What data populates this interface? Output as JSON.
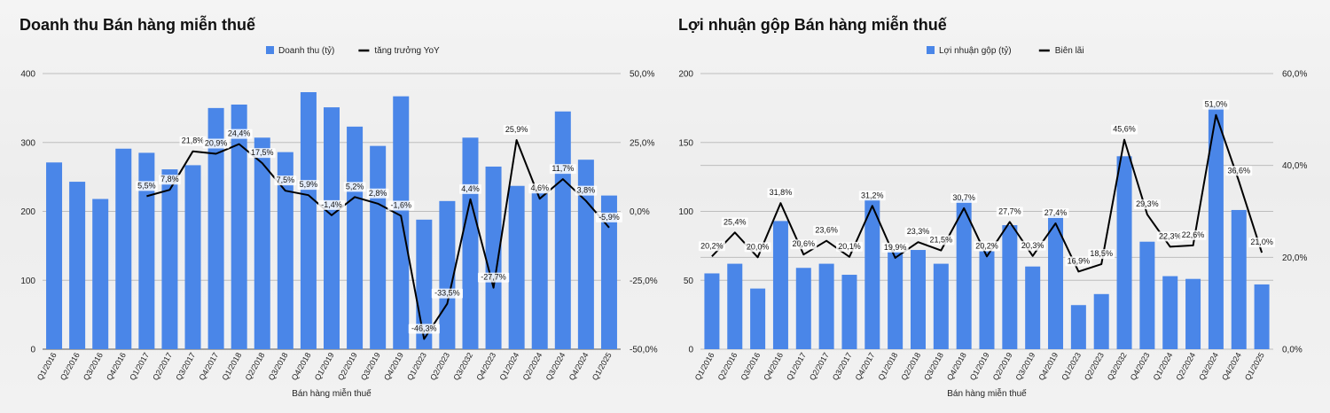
{
  "colors": {
    "bar": "#4a86e8",
    "line": "#000000",
    "grid": "#bdbdbd",
    "label_bg": "#ffffff"
  },
  "chart_data": [
    {
      "type": "bar",
      "title": "Doanh thu Bán hàng miễn thuế",
      "xlabel": "Bán hàng miễn thuế",
      "ylabel": "",
      "ylim": [
        0,
        400
      ],
      "y2lim": [
        -50,
        50
      ],
      "yticks": [
        "0",
        "100",
        "200",
        "300",
        "400"
      ],
      "y2ticks": [
        "-50,0%",
        "-25,0%",
        "0,0%",
        "25,0%",
        "50,0%"
      ],
      "legend_position": "top",
      "grid": true,
      "categories": [
        "Q1/2016",
        "Q2/2016",
        "Q3/2016",
        "Q4/2016",
        "Q1/2017",
        "Q2/2017",
        "Q3/2017",
        "Q4/2017",
        "Q1/2018",
        "Q2/2018",
        "Q3/2018",
        "Q4/2018",
        "Q1/2019",
        "Q2/2019",
        "Q3/2019",
        "Q4/2019",
        "Q1/2023",
        "Q2/2023",
        "Q3/2032",
        "Q4/2023",
        "Q1/2024",
        "Q2/2024",
        "Q3/2024",
        "Q4/2024",
        "Q1/2025"
      ],
      "series": [
        {
          "name": "Doanh thu (tỷ)",
          "kind": "bar",
          "axis": "left",
          "values": [
            271,
            243,
            218,
            291,
            285,
            261,
            267,
            350,
            355,
            307,
            286,
            373,
            351,
            323,
            295,
            367,
            188,
            215,
            307,
            265,
            237,
            230,
            345,
            275,
            223
          ]
        },
        {
          "name": "tăng trưởng YoY",
          "kind": "line",
          "axis": "right",
          "values": [
            null,
            null,
            null,
            null,
            5.5,
            7.8,
            21.8,
            20.9,
            24.4,
            17.5,
            7.5,
            5.9,
            -1.4,
            5.2,
            2.8,
            -1.6,
            -46.3,
            -33.5,
            4.4,
            -27.7,
            25.9,
            4.6,
            11.7,
            3.8,
            -5.9
          ],
          "labels": [
            "",
            "",
            "",
            "",
            "5,5%",
            "7,8%",
            "21,8%",
            "20,9%",
            "24,4%",
            "17,5%",
            "7,5%",
            "5,9%",
            "-1,4%",
            "5,2%",
            "2,8%",
            "-1,6%",
            "-46,3%",
            "-33,5%",
            "4,4%",
            "-27,7%",
            "25,9%",
            "4,6%",
            "11,7%",
            "3,8%",
            "-5,9%"
          ]
        }
      ]
    },
    {
      "type": "bar",
      "title": "Lợi nhuận gộp Bán hàng miễn thuế",
      "xlabel": "Bán hàng miễn thuế",
      "ylabel": "",
      "ylim": [
        0,
        200
      ],
      "y2lim": [
        0,
        60
      ],
      "yticks": [
        "0",
        "50",
        "100",
        "150",
        "200"
      ],
      "y2ticks": [
        "0,0%",
        "20,0%",
        "40,0%",
        "60,0%"
      ],
      "legend_position": "top",
      "grid": true,
      "categories": [
        "Q1/2016",
        "Q2/2016",
        "Q3/2016",
        "Q4/2016",
        "Q1/2017",
        "Q2/2017",
        "Q3/2017",
        "Q4/2017",
        "Q1/2018",
        "Q2/2018",
        "Q3/2018",
        "Q4/2018",
        "Q1/2019",
        "Q2/2019",
        "Q3/2019",
        "Q4/2019",
        "Q1/2023",
        "Q2/2023",
        "Q3/2032",
        "Q4/2023",
        "Q1/2024",
        "Q2/2024",
        "Q3/2024",
        "Q4/2024",
        "Q1/2025"
      ],
      "series": [
        {
          "name": "Lợi nhuận gộp (tỷ)",
          "kind": "bar",
          "axis": "left",
          "values": [
            55,
            62,
            44,
            93,
            59,
            62,
            54,
            109,
            71,
            72,
            62,
            109,
            71,
            90,
            60,
            97,
            32,
            40,
            140,
            78,
            53,
            51,
            176,
            101,
            47
          ]
        },
        {
          "name": "Biên lãi",
          "kind": "line",
          "axis": "right",
          "values": [
            20.2,
            25.4,
            20.0,
            31.8,
            20.6,
            23.6,
            20.1,
            31.2,
            19.9,
            23.3,
            21.5,
            30.7,
            20.2,
            27.7,
            20.3,
            27.4,
            16.9,
            18.5,
            45.6,
            29.3,
            22.3,
            22.6,
            51.0,
            36.6,
            21.0
          ],
          "labels": [
            "20,2%",
            "25,4%",
            "20,0%",
            "31,8%",
            "20,6%",
            "23,6%",
            "20,1%",
            "31,2%",
            "19,9%",
            "23,3%",
            "21,5%",
            "30,7%",
            "20,2%",
            "27,7%",
            "20,3%",
            "27,4%",
            "16,9%",
            "18,5%",
            "45,6%",
            "29,3%",
            "22,3%",
            "22,6%",
            "51,0%",
            "36,6%",
            "21,0%"
          ]
        }
      ]
    }
  ]
}
